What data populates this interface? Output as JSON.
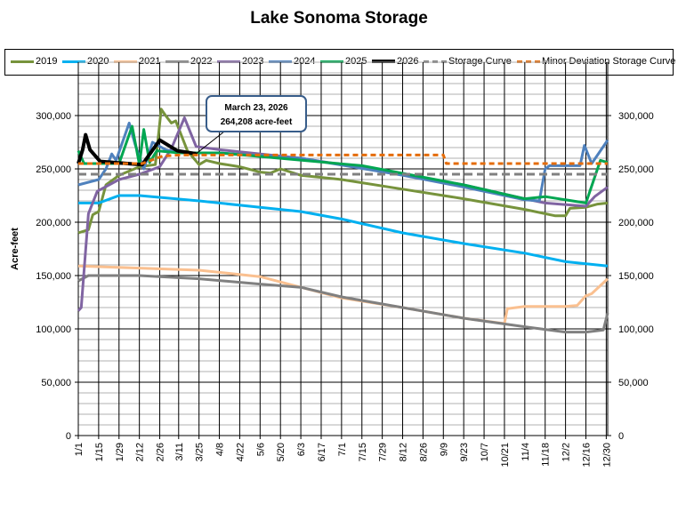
{
  "chart_data": {
    "type": "line",
    "title": "Lake Sonoma Storage",
    "ylabel": "Acre-feet",
    "xlabel": "",
    "ylim": [
      0,
      350000
    ],
    "xlim": [
      "1/1",
      "12/31"
    ],
    "grid": true,
    "legend_position": "top",
    "y_ticks": [
      "0",
      "50,000",
      "100,000",
      "150,000",
      "200,000",
      "250,000",
      "300,000"
    ],
    "y_tick_values": [
      0,
      50000,
      100000,
      150000,
      200000,
      250000,
      300000
    ],
    "x_ticks": [
      "1/1",
      "1/15",
      "1/29",
      "2/12",
      "2/26",
      "3/11",
      "3/25",
      "4/8",
      "4/22",
      "5/6",
      "5/20",
      "6/3",
      "6/17",
      "7/1",
      "7/15",
      "7/29",
      "8/12",
      "8/26",
      "9/9",
      "9/23",
      "10/7",
      "10/21",
      "11/4",
      "11/18",
      "12/2",
      "12/16",
      "12/30"
    ],
    "annotation": {
      "line1": "March 23, 2026",
      "line2": "264,208 acre-feet",
      "x": "3/23",
      "y": 264208
    },
    "series": [
      {
        "name": "2019",
        "color": "#77933c",
        "dash": false,
        "points": [
          [
            "1/1",
            190000
          ],
          [
            "1/8",
            193000
          ],
          [
            "1/11",
            207000
          ],
          [
            "1/15",
            210000
          ],
          [
            "1/20",
            235000
          ],
          [
            "1/29",
            244000
          ],
          [
            "2/12",
            252000
          ],
          [
            "2/23",
            254000
          ],
          [
            "2/27",
            306000
          ],
          [
            "3/2",
            300000
          ],
          [
            "3/6",
            293000
          ],
          [
            "3/9",
            295000
          ],
          [
            "3/17",
            267000
          ],
          [
            "3/25",
            254000
          ],
          [
            "3/30",
            258000
          ],
          [
            "4/8",
            255000
          ],
          [
            "4/22",
            252000
          ],
          [
            "5/6",
            247000
          ],
          [
            "5/13",
            246000
          ],
          [
            "5/20",
            250000
          ],
          [
            "6/3",
            244000
          ],
          [
            "7/1",
            240000
          ],
          [
            "8/12",
            231000
          ],
          [
            "9/23",
            222000
          ],
          [
            "11/4",
            212000
          ],
          [
            "11/25",
            206000
          ],
          [
            "12/2",
            206000
          ],
          [
            "12/5",
            213000
          ],
          [
            "12/16",
            214000
          ],
          [
            "12/24",
            217000
          ],
          [
            "12/31",
            218000
          ]
        ]
      },
      {
        "name": "2020",
        "color": "#00b0f0",
        "dash": false,
        "points": [
          [
            "1/1",
            218000
          ],
          [
            "1/15",
            218000
          ],
          [
            "1/29",
            225000
          ],
          [
            "2/12",
            225000
          ],
          [
            "3/25",
            220000
          ],
          [
            "5/6",
            214000
          ],
          [
            "6/3",
            210000
          ],
          [
            "7/1",
            203000
          ],
          [
            "8/12",
            190000
          ],
          [
            "9/23",
            180000
          ],
          [
            "11/4",
            171000
          ],
          [
            "12/2",
            163000
          ],
          [
            "12/31",
            159000
          ]
        ]
      },
      {
        "name": "2021",
        "color": "#fac090",
        "dash": false,
        "points": [
          [
            "1/1",
            159000
          ],
          [
            "2/12",
            157000
          ],
          [
            "3/25",
            155000
          ],
          [
            "5/6",
            149000
          ],
          [
            "6/3",
            139000
          ],
          [
            "7/1",
            129000
          ],
          [
            "8/12",
            120000
          ],
          [
            "9/23",
            110000
          ],
          [
            "10/21",
            105000
          ],
          [
            "10/23",
            119000
          ],
          [
            "11/4",
            121000
          ],
          [
            "12/2",
            121000
          ],
          [
            "12/10",
            122000
          ],
          [
            "12/16",
            131000
          ],
          [
            "12/20",
            133000
          ],
          [
            "12/31",
            147000
          ]
        ]
      },
      {
        "name": "2022",
        "color": "#808080",
        "dash": false,
        "points": [
          [
            "1/1",
            145000
          ],
          [
            "1/8",
            150000
          ],
          [
            "2/12",
            150000
          ],
          [
            "3/25",
            147000
          ],
          [
            "5/6",
            142000
          ],
          [
            "6/3",
            139000
          ],
          [
            "7/1",
            130000
          ],
          [
            "8/12",
            120000
          ],
          [
            "9/23",
            110000
          ],
          [
            "11/4",
            102000
          ],
          [
            "12/2",
            97000
          ],
          [
            "12/16",
            97000
          ],
          [
            "12/28",
            99000
          ],
          [
            "12/31",
            115000
          ]
        ]
      },
      {
        "name": "2023",
        "color": "#8064a2",
        "dash": false,
        "points": [
          [
            "1/1",
            117000
          ],
          [
            "1/3",
            120000
          ],
          [
            "1/8",
            208000
          ],
          [
            "1/14",
            229000
          ],
          [
            "1/29",
            240000
          ],
          [
            "2/12",
            245000
          ],
          [
            "2/26",
            252000
          ],
          [
            "3/6",
            269000
          ],
          [
            "3/15",
            298000
          ],
          [
            "3/23",
            271000
          ],
          [
            "4/8",
            268000
          ],
          [
            "6/3",
            260000
          ],
          [
            "8/12",
            245000
          ],
          [
            "9/23",
            235000
          ],
          [
            "11/4",
            222000
          ],
          [
            "11/18",
            218000
          ],
          [
            "12/16",
            215000
          ],
          [
            "12/22",
            224000
          ],
          [
            "12/31",
            233000
          ]
        ]
      },
      {
        "name": "2024",
        "color": "#4f81bd",
        "dash": false,
        "points": [
          [
            "1/1",
            235000
          ],
          [
            "1/15",
            240000
          ],
          [
            "1/20",
            250000
          ],
          [
            "1/24",
            264000
          ],
          [
            "1/27",
            258000
          ],
          [
            "2/5",
            293000
          ],
          [
            "2/9",
            273000
          ],
          [
            "2/15",
            250000
          ],
          [
            "2/21",
            275000
          ],
          [
            "3/2",
            268000
          ],
          [
            "3/11",
            265000
          ],
          [
            "4/8",
            265000
          ],
          [
            "6/3",
            260000
          ],
          [
            "8/12",
            244000
          ],
          [
            "9/23",
            233000
          ],
          [
            "11/4",
            221000
          ],
          [
            "11/14",
            220000
          ],
          [
            "11/18",
            250000
          ],
          [
            "11/21",
            253000
          ],
          [
            "12/12",
            253000
          ],
          [
            "12/15",
            272000
          ],
          [
            "12/20",
            255000
          ],
          [
            "12/31",
            277000
          ]
        ]
      },
      {
        "name": "2025",
        "color": "#00a651",
        "dash": false,
        "points": [
          [
            "1/1",
            267000
          ],
          [
            "1/5",
            255000
          ],
          [
            "1/29",
            255000
          ],
          [
            "2/7",
            290000
          ],
          [
            "2/12",
            254000
          ],
          [
            "2/15",
            287000
          ],
          [
            "2/19",
            256000
          ],
          [
            "2/24",
            267000
          ],
          [
            "3/11",
            265000
          ],
          [
            "4/8",
            265000
          ],
          [
            "7/15",
            253000
          ],
          [
            "9/23",
            235000
          ],
          [
            "11/4",
            222000
          ],
          [
            "11/18",
            224000
          ],
          [
            "12/16",
            218000
          ],
          [
            "12/26",
            258000
          ],
          [
            "12/31",
            256000
          ]
        ]
      },
      {
        "name": "2026",
        "color": "#000000",
        "dash": false,
        "points": [
          [
            "1/1",
            255000
          ],
          [
            "1/4",
            268000
          ],
          [
            "1/6",
            282000
          ],
          [
            "1/9",
            268000
          ],
          [
            "1/16",
            257000
          ],
          [
            "2/14",
            254000
          ],
          [
            "2/26",
            277000
          ],
          [
            "3/10",
            267000
          ],
          [
            "3/23",
            264208
          ]
        ]
      },
      {
        "name": "Storage Curve",
        "color": "#808080",
        "dash": true,
        "points": [
          [
            "1/1",
            245000
          ],
          [
            "12/31",
            245000
          ]
        ]
      },
      {
        "name": "Minor Deviation Storage Curve",
        "color": "#e46c0a",
        "dash": true,
        "points": [
          [
            "1/1",
            255000
          ],
          [
            "2/14",
            255000
          ],
          [
            "2/28",
            262000
          ],
          [
            "3/11",
            263000
          ],
          [
            "9/9",
            263000
          ],
          [
            "9/11",
            255000
          ],
          [
            "12/31",
            255000
          ]
        ]
      }
    ]
  }
}
